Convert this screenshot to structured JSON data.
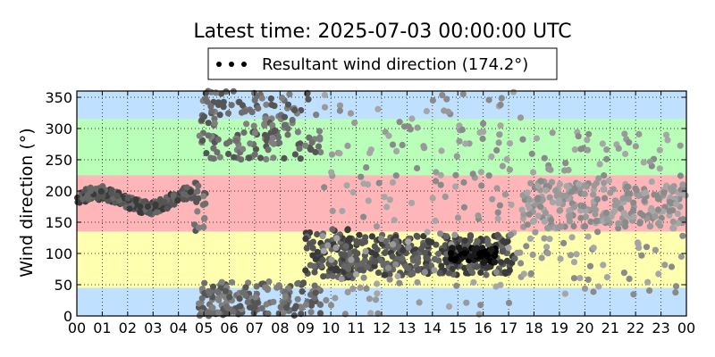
{
  "chart_data": {
    "type": "scatter",
    "title": "Latest time: 2025-07-03 00:00:00 UTC",
    "xlabel": "",
    "ylabel": "Wind direction (°)",
    "xlim": [
      0,
      24
    ],
    "ylim": [
      0,
      360
    ],
    "x_ticks": [
      0,
      1,
      2,
      3,
      4,
      5,
      6,
      7,
      8,
      9,
      10,
      11,
      12,
      13,
      14,
      15,
      16,
      17,
      18,
      19,
      20,
      21,
      22,
      23,
      24
    ],
    "x_tick_labels": [
      "00",
      "01",
      "02",
      "03",
      "04",
      "05",
      "06",
      "07",
      "08",
      "09",
      "10",
      "11",
      "12",
      "13",
      "14",
      "15",
      "16",
      "17",
      "18",
      "19",
      "20",
      "21",
      "22",
      "23",
      "00"
    ],
    "y_ticks": [
      0,
      50,
      100,
      150,
      200,
      250,
      300,
      350
    ],
    "y_tick_labels": [
      "0",
      "50",
      "100",
      "150",
      "200",
      "250",
      "300",
      "350"
    ],
    "grid": true,
    "legend": {
      "placement": "top-center",
      "entries": [
        "Resultant wind direction (174.2°)"
      ]
    },
    "bands": [
      {
        "from": 0,
        "to": 45,
        "color": "#bfe0ff"
      },
      {
        "from": 45,
        "to": 135,
        "color": "#ffffb0"
      },
      {
        "from": 135,
        "to": 225,
        "color": "#ffb6b9"
      },
      {
        "from": 225,
        "to": 315,
        "color": "#b9ffb9"
      },
      {
        "from": 315,
        "to": 360,
        "color": "#bfe0ff"
      }
    ],
    "series": [
      {
        "clusters": [
          {
            "x": [
              0.0,
              4.6
            ],
            "y": [
              160,
              205
            ],
            "n": 220,
            "tone": "dark"
          },
          {
            "x": [
              4.6,
              5.1
            ],
            "y": [
              130,
              230
            ],
            "n": 18,
            "tone": "mid"
          },
          {
            "x": [
              4.8,
              9.6
            ],
            "y": [
              0,
              55
            ],
            "n": 170,
            "tone": "mid"
          },
          {
            "x": [
              4.8,
              9.6
            ],
            "y": [
              250,
              360
            ],
            "n": 170,
            "tone": "mid"
          },
          {
            "x": [
              9.0,
              11.0
            ],
            "y": [
              60,
              140
            ],
            "n": 90,
            "tone": "dark"
          },
          {
            "x": [
              10.5,
              17.3
            ],
            "y": [
              65,
              130
            ],
            "n": 330,
            "tone": "dark"
          },
          {
            "x": [
              9.5,
              17.5
            ],
            "y": [
              0,
              360
            ],
            "n": 170,
            "tone": "light"
          },
          {
            "x": [
              14.7,
              16.5
            ],
            "y": [
              85,
              110
            ],
            "n": 70,
            "tone": "black"
          },
          {
            "x": [
              17.5,
              24.0
            ],
            "y": [
              140,
              215
            ],
            "n": 240,
            "tone": "light"
          },
          {
            "x": [
              17.5,
              24.0
            ],
            "y": [
              30,
              300
            ],
            "n": 130,
            "tone": "light"
          }
        ]
      }
    ]
  }
}
